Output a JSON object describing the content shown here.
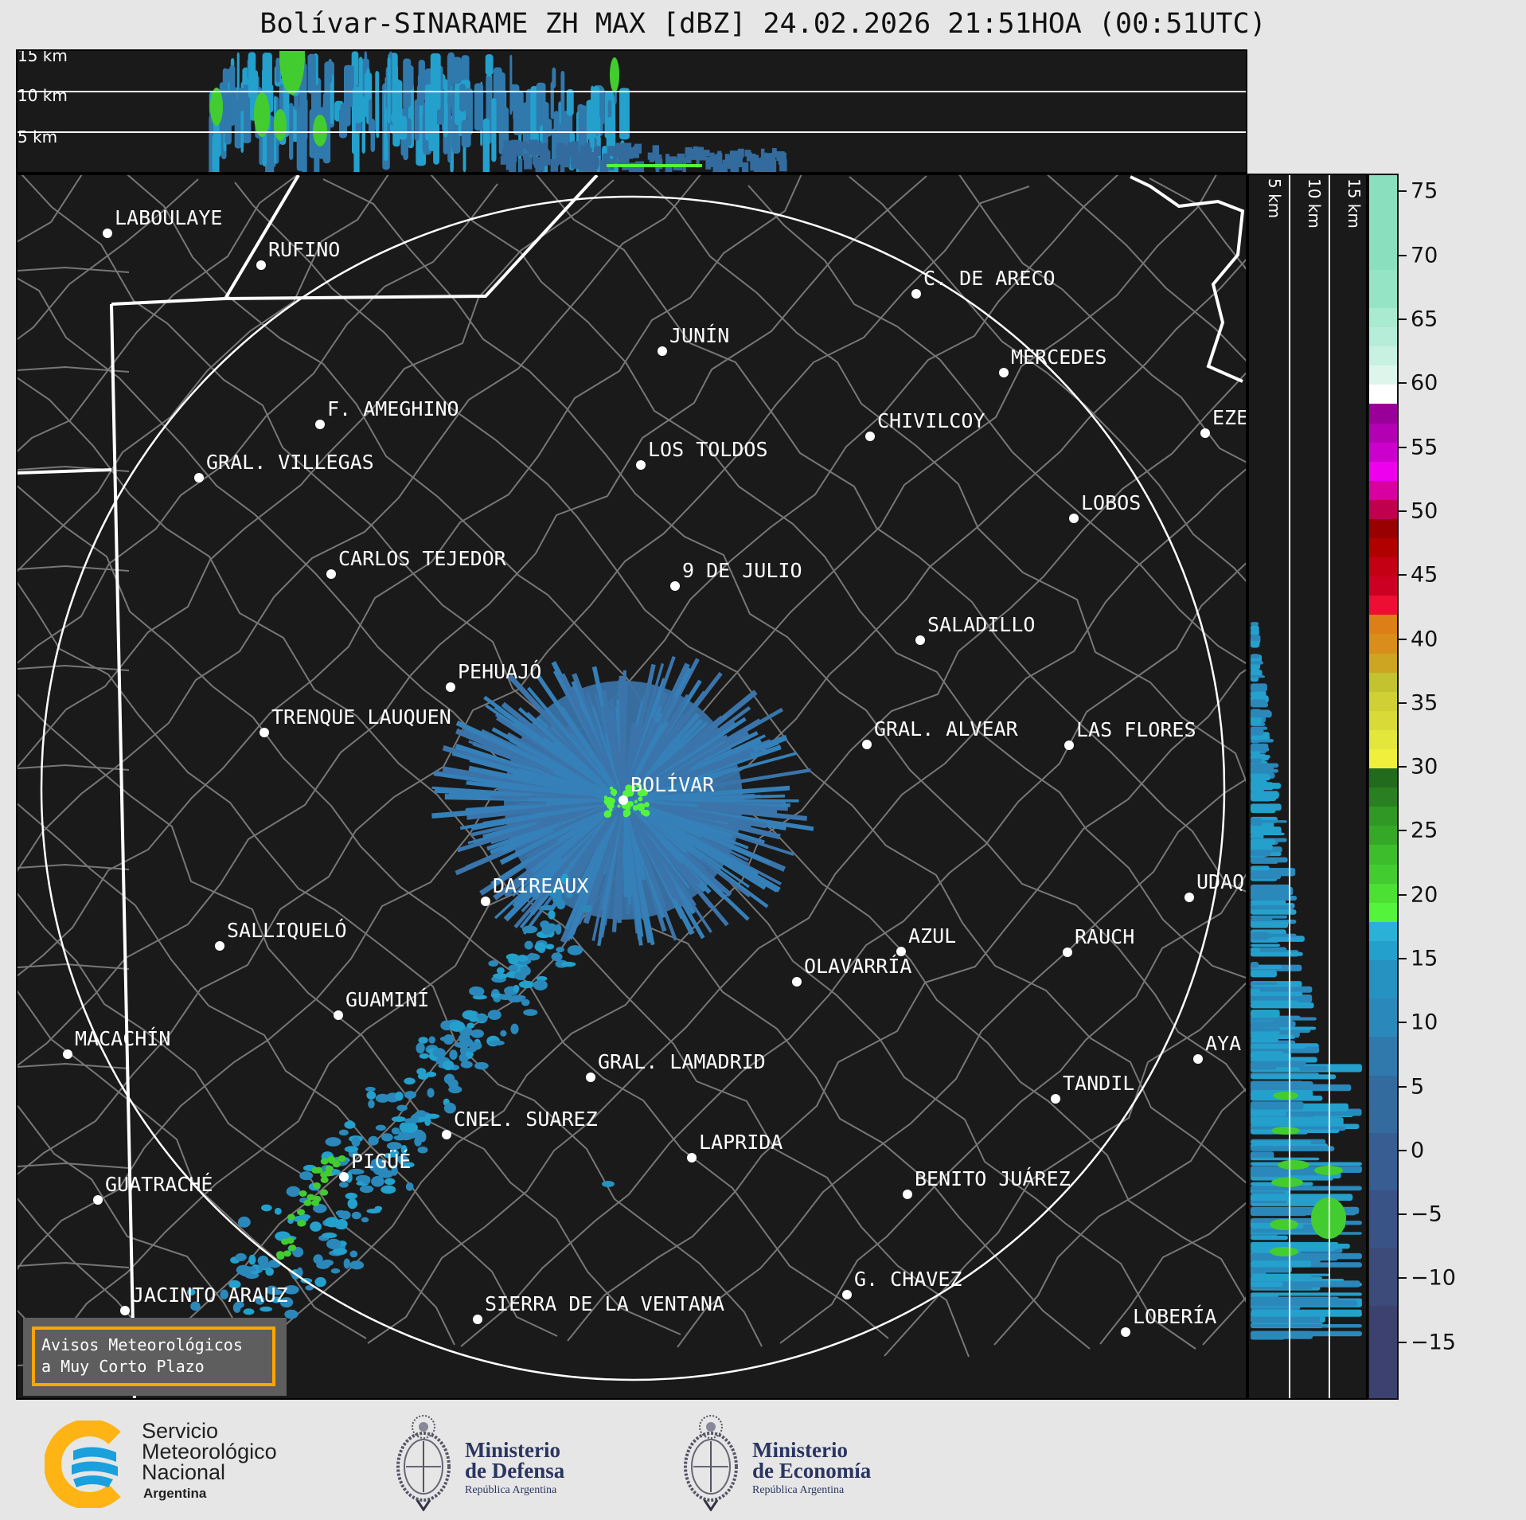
{
  "title": "Bolívar-SINARAME ZH MAX [dBZ] 24.02.2026 21:51HOA (00:51UTC)",
  "top_panel": {
    "height_labels": [
      "15 km",
      "10 km",
      "5 km"
    ]
  },
  "right_panel": {
    "height_labels": [
      "5 km",
      "10 km",
      "15 km"
    ]
  },
  "colorbar": {
    "unit": "dBZ",
    "range": [
      -19.5,
      76.4
    ],
    "ticks": [
      "75",
      "70",
      "65",
      "60",
      "55",
      "50",
      "45",
      "40",
      "35",
      "30",
      "25",
      "20",
      "15",
      "10",
      "5",
      "0",
      "−5",
      "−10",
      "−15"
    ],
    "tick_values": [
      75,
      70,
      65,
      60,
      55,
      50,
      45,
      40,
      35,
      30,
      25,
      20,
      15,
      10,
      5,
      0,
      -5,
      -10,
      -15
    ],
    "bins": [
      [
        69,
        76.4,
        "#8adfbf"
      ],
      [
        66,
        69,
        "#96e4c6"
      ],
      [
        64.5,
        66,
        "#a8ebd0"
      ],
      [
        63,
        64.5,
        "#b6edd8"
      ],
      [
        61.5,
        63,
        "#c7f1e0"
      ],
      [
        60,
        61.5,
        "#def5ec"
      ],
      [
        58.5,
        60,
        "#ffffff"
      ],
      [
        57,
        58.5,
        "#990099"
      ],
      [
        55.5,
        57,
        "#b300b3"
      ],
      [
        54,
        55.5,
        "#cc00cc"
      ],
      [
        52.5,
        54,
        "#ee00ee"
      ],
      [
        51,
        52.5,
        "#d800a0"
      ],
      [
        49.5,
        51,
        "#c0004f"
      ],
      [
        48,
        49.5,
        "#990000"
      ],
      [
        46.5,
        48,
        "#b00000"
      ],
      [
        45,
        46.5,
        "#c30014"
      ],
      [
        43.5,
        45,
        "#cc0022"
      ],
      [
        42,
        43.5,
        "#ee0d33"
      ],
      [
        40.5,
        42,
        "#dc7f16"
      ],
      [
        39,
        40.5,
        "#d98e1b"
      ],
      [
        37.5,
        39,
        "#cda523"
      ],
      [
        36,
        37.5,
        "#c3c22f"
      ],
      [
        34.5,
        36,
        "#d0d034"
      ],
      [
        33,
        34.5,
        "#d9da38"
      ],
      [
        31.5,
        33,
        "#e3e63b"
      ],
      [
        30,
        31.5,
        "#f0f03c"
      ],
      [
        28.5,
        30,
        "#236b1c"
      ],
      [
        27,
        28.5,
        "#2a7f20"
      ],
      [
        25.5,
        27,
        "#309824"
      ],
      [
        24,
        25.5,
        "#36a828"
      ],
      [
        22.5,
        24,
        "#3ebd2c"
      ],
      [
        21,
        22.5,
        "#43cc30"
      ],
      [
        19.5,
        21,
        "#4ce035"
      ],
      [
        18,
        19.5,
        "#55f43c"
      ],
      [
        16.5,
        18,
        "#2bb0d8"
      ],
      [
        15,
        16.5,
        "#24a0cc"
      ],
      [
        12,
        15,
        "#2592c2"
      ],
      [
        9,
        12,
        "#2a88bb"
      ],
      [
        6,
        9,
        "#3079ad"
      ],
      [
        1.5,
        6,
        "#336b9e"
      ],
      [
        -3,
        1.5,
        "#375d93"
      ],
      [
        -7.5,
        -3,
        "#3a5386"
      ],
      [
        -12,
        -7.5,
        "#3d4b7a"
      ],
      [
        -19.5,
        -12,
        "#3d416f"
      ]
    ]
  },
  "map": {
    "background": "#1a1a1a",
    "county_line_color": "#777777",
    "border_color": "#ffffff",
    "cities": [
      "LABOULAYE",
      "RUFINO",
      "C. DE ARECO",
      "JUNÍN",
      "MERCEDES",
      "F. AMEGHINO",
      "CHIVILCOY",
      "EZE",
      "GRAL. VILLEGAS",
      "LOS TOLDOS",
      "LOBOS",
      "CARLOS TEJEDOR",
      "9 DE JULIO",
      "SALADILLO",
      "PEHUAJÓ",
      "TRENQUE LAUQUEN",
      "GRAL. ALVEAR",
      "LAS FLORES",
      "BOLÍVAR",
      "DAIREAUX",
      "UDAQ",
      "SALLIQUELÓ",
      "AZUL",
      "RAUCH",
      "OLAVARRÍA",
      "GUAMINÍ",
      "MACACHÍN",
      "AYA",
      "GRAL. LAMADRID",
      "TANDIL",
      "CNEL. SUAREZ",
      "LAPRIDA",
      "PIGÜÉ",
      "GUATRACHÉ",
      "BENITO JUÁREZ",
      "G. CHAVEZ",
      "JACINTO ARAUZ",
      "SIERRA DE LA VENTANA",
      "LOBERÍA"
    ]
  },
  "warning_box": {
    "line1": "Avisos Meteorológicos",
    "line2": "a Muy Corto Plazo",
    "border_color": "#ffa500"
  },
  "footer": {
    "smn": {
      "line1": "Servicio",
      "line2": "Meteorológico",
      "line3": "Nacional",
      "line4": "Argentina"
    },
    "defensa": {
      "line1": "Ministerio",
      "line2": "de Defensa",
      "line3": "República Argentina"
    },
    "economia": {
      "line1": "Ministerio",
      "line2": "de Economía",
      "line3": "República Argentina"
    }
  }
}
